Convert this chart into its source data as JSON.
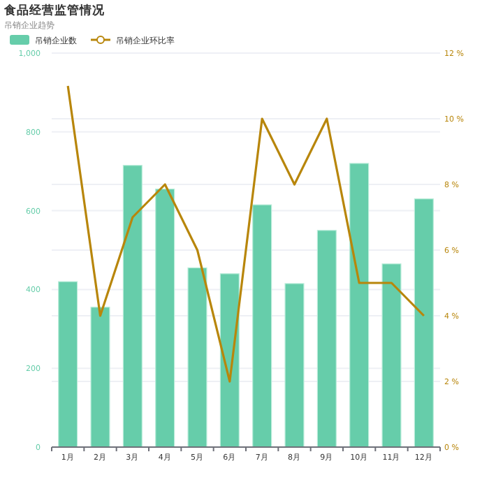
{
  "chart_data": {
    "type": "bar",
    "title": "食品经营监管情况",
    "subtitle": "吊销企业趋势",
    "categories": [
      "1月",
      "2月",
      "3月",
      "4月",
      "5月",
      "6月",
      "7月",
      "8月",
      "9月",
      "10月",
      "11月",
      "12月"
    ],
    "series": [
      {
        "name": "吊销企业数",
        "color": "#66cdaa",
        "values": [
          420,
          355,
          715,
          655,
          455,
          440,
          615,
          415,
          550,
          720,
          465,
          630
        ]
      },
      {
        "name": "吊销企业环比率",
        "type": "line",
        "axis": "y2",
        "color": "#b8860b",
        "values": [
          11,
          4,
          7,
          8,
          6,
          2,
          10,
          8,
          10,
          5,
          5,
          4
        ]
      }
    ],
    "ylim": [
      0,
      1000
    ],
    "yticks": [
      0,
      200,
      400,
      600,
      800,
      {
        "value": 1000,
        "label": "1,000"
      }
    ],
    "y2lim": [
      0,
      12
    ],
    "y2ticks": [
      {
        "value": 0,
        "label": "0 %"
      },
      {
        "value": 2,
        "label": "2 %"
      },
      {
        "value": 4,
        "label": "4 %"
      },
      {
        "value": 6,
        "label": "6 %"
      },
      {
        "value": 8,
        "label": "8 %"
      },
      {
        "value": 10,
        "label": "10 %"
      },
      {
        "value": 12,
        "label": "12 %"
      }
    ],
    "grid": true,
    "legend": "top left",
    "marker": "none",
    "line_style": "solid"
  }
}
